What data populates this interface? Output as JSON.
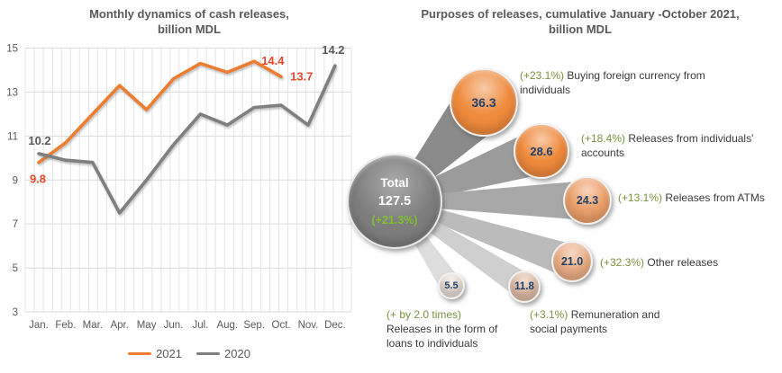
{
  "chart_data": [
    {
      "type": "line",
      "title": "Monthly dynamics of cash releases, billion MDL",
      "title_lines": [
        "Monthly dynamics of cash releases,",
        "billion MDL"
      ],
      "categories": [
        "Jan.",
        "Feb.",
        "Mar.",
        "Apr.",
        "May",
        "Jun.",
        "Jul.",
        "Aug.",
        "Sep.",
        "Oct.",
        "Nov.",
        "Dec."
      ],
      "yticks": [
        3,
        5,
        7,
        9,
        11,
        13,
        15
      ],
      "ylim": [
        3,
        15
      ],
      "grid": true,
      "legend_position": "bottom",
      "series": [
        {
          "name": "2021",
          "color": "#ED7D31",
          "label_color": "#E0492A",
          "values": [
            9.8,
            10.7,
            12.0,
            13.3,
            12.2,
            13.6,
            14.3,
            13.9,
            14.4,
            13.7,
            null,
            null
          ],
          "point_labels": [
            {
              "index": 0,
              "text": "9.8",
              "dx": -1,
              "dy": 23,
              "anchor": "middle"
            },
            {
              "index": 8,
              "text": "14.4",
              "dx": 8,
              "dy": 4,
              "anchor": "start"
            },
            {
              "index": 9,
              "text": "13.7",
              "dx": 10,
              "dy": 4,
              "anchor": "start"
            }
          ]
        },
        {
          "name": "2020",
          "color": "#7F7F7F",
          "label_color": "#595959",
          "values": [
            10.2,
            9.9,
            9.8,
            7.5,
            9.0,
            10.6,
            12.0,
            11.5,
            12.3,
            12.4,
            11.5,
            14.2
          ],
          "point_labels": [
            {
              "index": 0,
              "text": "10.2",
              "dx": 1,
              "dy": -10,
              "anchor": "middle"
            },
            {
              "index": 11,
              "text": "14.2",
              "dx": -2,
              "dy": -13,
              "anchor": "middle"
            }
          ]
        }
      ]
    },
    {
      "type": "bubble-spider",
      "title": "Purposes of releases, cumulative January -October 2021, billion MDL",
      "title_lines": [
        "Purposes of releases, cumulative January -October 2021,",
        "billion MDL"
      ],
      "center": {
        "label": "Total",
        "value": "127.5",
        "pct": "(+21.3%)",
        "color": "#7D7D7D",
        "pct_color": "#7FC12F"
      },
      "value_color": "#1F4068",
      "pct_color": "#76933C",
      "text_color": "#3B3838",
      "items": [
        {
          "value": "36.3",
          "pct": "(+23.1%)",
          "label": "Buying foreign currency from individuals",
          "color": "#F08A3C",
          "ray_color": "#8A8A8A"
        },
        {
          "value": "28.6",
          "pct": "(+18.4%)",
          "label": "Releases from individuals' accounts",
          "color": "#F08A3C",
          "ray_color": "#9B9B9B"
        },
        {
          "value": "24.3",
          "pct": "(+13.1%)",
          "label": "Releases from ATMs",
          "color": "#EDA06B",
          "ray_color": "#A8A8A8"
        },
        {
          "value": "21.0",
          "pct": "(+32.3%)",
          "label": "Other releases",
          "color": "#EBAE85",
          "ray_color": "#BBBBBB"
        },
        {
          "value": "11.8",
          "pct": "(+3.1%)",
          "label": "Remuneration and social payments",
          "color": "#DFBCA6",
          "ray_color": "#CFCFCF"
        },
        {
          "value": "5.5",
          "pct": "(+ by 2.0 times)",
          "label": "Releases in the form of loans to individuals",
          "color": "#E9DED6",
          "ray_color": "#DDDDDD"
        }
      ]
    }
  ]
}
